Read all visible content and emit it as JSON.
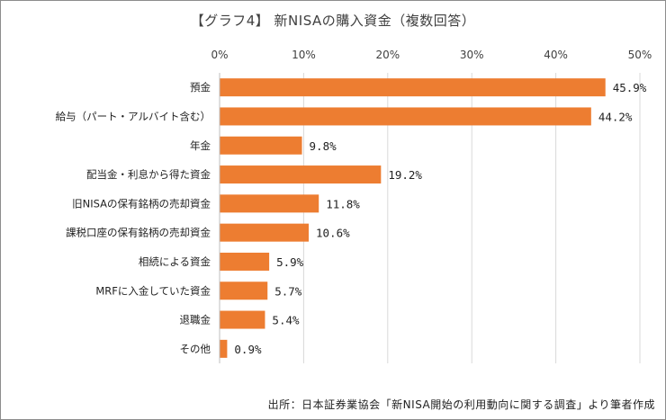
{
  "chart_data": {
    "type": "bar",
    "orientation": "horizontal",
    "title": "【グラフ4】 新NISAの購入資金（複数回答）",
    "xlabel": "",
    "ylabel": "",
    "xlim": [
      0,
      50
    ],
    "x_ticks": [
      "0%",
      "10%",
      "20%",
      "30%",
      "40%",
      "50%"
    ],
    "x_tick_values": [
      0,
      10,
      20,
      30,
      40,
      50
    ],
    "grid": true,
    "legend": "none",
    "categories": [
      "預金",
      "給与（パート・アルバイト含む）",
      "年金",
      "配当金・利息から得た資金",
      "旧NISAの保有銘柄の売却資金",
      "課税口座の保有銘柄の売却資金",
      "相続による資金",
      "MRFに入金していた資金",
      "退職金",
      "その他"
    ],
    "values": [
      45.9,
      44.2,
      9.8,
      19.2,
      11.8,
      10.6,
      5.9,
      5.7,
      5.4,
      0.9
    ],
    "data_labels": [
      "45.9%",
      "44.2%",
      "9.8%",
      "19.2%",
      "11.8%",
      "10.6%",
      "5.9%",
      "5.7%",
      "5.4%",
      "0.9%"
    ],
    "bar_color": "#ED7D31",
    "gridline_color": "#d9d9d9",
    "source": "出所：日本証券業協会「新NISA開始の利用動向に関する調査」より筆者作成"
  }
}
